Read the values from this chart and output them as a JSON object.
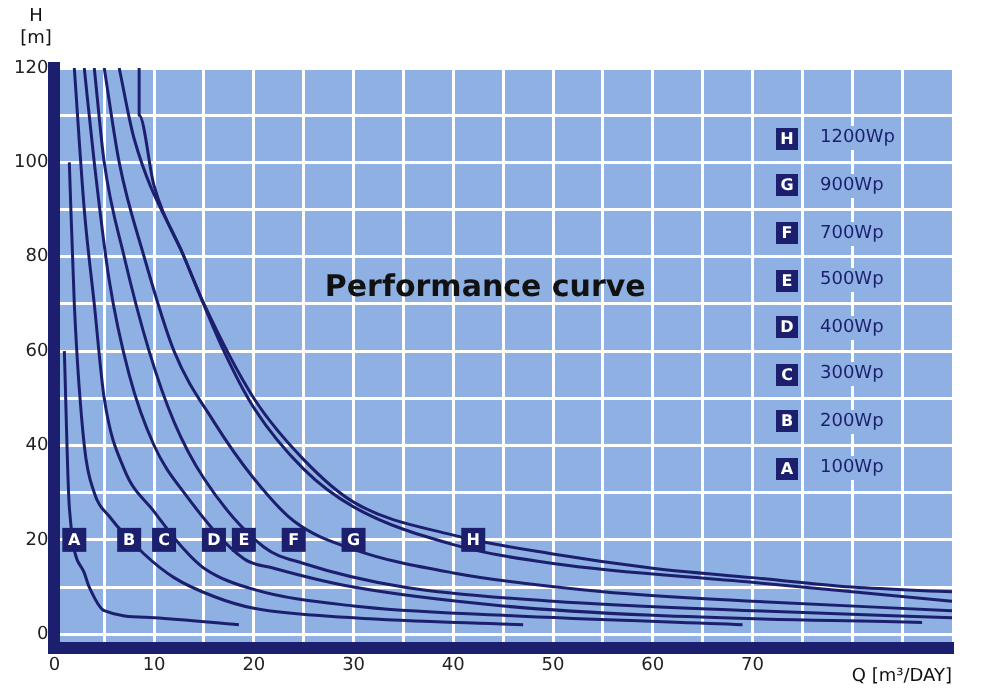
{
  "chart_data": {
    "type": "line",
    "title": "Performance curve",
    "xlabel": "Q [m³/DAY]",
    "ylabel": "H [m]",
    "xlim": [
      0,
      90
    ],
    "ylim": [
      -3,
      120
    ],
    "xticks": [
      0,
      {
        "value": 5,
        "label": null
      },
      10,
      {
        "value": 15,
        "label": null
      },
      20,
      {
        "value": 25,
        "label": null
      },
      30,
      {
        "value": 35,
        "label": null
      },
      40,
      {
        "value": 45,
        "label": null
      },
      50,
      {
        "value": 55,
        "label": null
      },
      60,
      {
        "value": 65,
        "label": null
      },
      70,
      {
        "value": 75,
        "label": null
      },
      {
        "value": 80,
        "label": null
      },
      {
        "value": 85,
        "label": null
      }
    ],
    "yticks": [
      0,
      {
        "value": 10,
        "label": null
      },
      20,
      {
        "value": 30,
        "label": null
      },
      40,
      {
        "value": 50,
        "label": null
      },
      60,
      {
        "value": 70,
        "label": null
      },
      80,
      {
        "value": 90,
        "label": null
      },
      100,
      {
        "value": 110,
        "label": null
      },
      120
    ],
    "grid": true,
    "legend": "right",
    "marker": "none",
    "line_style": "solid",
    "series": [
      {
        "name": "100Wp",
        "color": "#1c1f6e",
        "x": [
          1,
          1.5,
          3,
          3.5,
          5,
          10,
          18.5
        ],
        "values": [
          60,
          27,
          13,
          10,
          5,
          3.5,
          2
        ]
      },
      {
        "name": "200Wp",
        "color": "#1c1f6e",
        "x": [
          1.5,
          2,
          3,
          4,
          5.5,
          9,
          12,
          16,
          20,
          30,
          47
        ],
        "values": [
          100,
          70,
          40,
          30,
          25,
          17,
          12,
          8,
          5.5,
          3.5,
          2
        ]
      },
      {
        "name": "300Wp",
        "color": "#1c1f6e",
        "x": [
          2,
          3,
          4,
          5,
          7,
          10,
          13,
          15,
          20,
          30,
          45,
          69
        ],
        "values": [
          120,
          90,
          70,
          50,
          35,
          26,
          18,
          14,
          9.5,
          6,
          4,
          2
        ]
      },
      {
        "name": "400Wp",
        "color": "#1c1f6e",
        "x": [
          3,
          4,
          5.5,
          7.5,
          10,
          13,
          19,
          22,
          30,
          45,
          60,
          87
        ],
        "values": [
          120,
          100,
          75,
          55,
          40,
          30,
          16,
          14,
          10,
          6,
          4,
          2.5
        ]
      },
      {
        "name": "500Wp",
        "color": "#1c1f6e",
        "x": [
          4,
          5,
          7,
          9.5,
          12,
          15,
          21,
          25,
          35,
          50,
          70,
          90
        ],
        "values": [
          120,
          100,
          80,
          60,
          45,
          33,
          18.5,
          15,
          10,
          7,
          5,
          3.5
        ]
      },
      {
        "name": "700Wp",
        "color": "#1c1f6e",
        "x": [
          5,
          6.5,
          9,
          12,
          16,
          20,
          24,
          30,
          40,
          55,
          70,
          90
        ],
        "values": [
          120,
          100,
          80,
          60,
          45,
          33,
          24,
          18,
          13,
          9,
          7,
          5
        ]
      },
      {
        "name": "900Wp",
        "color": "#1c1f6e",
        "x": [
          6.5,
          8,
          13,
          17,
          20,
          25,
          30,
          40,
          50,
          70,
          90
        ],
        "values": [
          120,
          105,
          80,
          60,
          48,
          35,
          27,
          19,
          15,
          11,
          7
        ]
      },
      {
        "name": "1200Wp",
        "color": "#1c1f6e",
        "x": [
          8.5,
          8.5,
          10,
          13,
          15,
          20,
          25,
          30,
          40,
          50,
          60,
          70,
          80,
          90
        ],
        "values": [
          120,
          110,
          95,
          80,
          70,
          50,
          37,
          28,
          21,
          17,
          14,
          12,
          10,
          9
        ]
      }
    ],
    "annotations": [
      {
        "text": "A",
        "x": 2,
        "y": 20
      },
      {
        "text": "B",
        "x": 7.5,
        "y": 20
      },
      {
        "text": "C",
        "x": 11,
        "y": 20
      },
      {
        "text": "D",
        "x": 16,
        "y": 20
      },
      {
        "text": "E",
        "x": 19,
        "y": 20
      },
      {
        "text": "F",
        "x": 24,
        "y": 20
      },
      {
        "text": "G",
        "x": 30,
        "y": 20
      },
      {
        "text": "H",
        "x": 42,
        "y": 20
      }
    ]
  }
}
